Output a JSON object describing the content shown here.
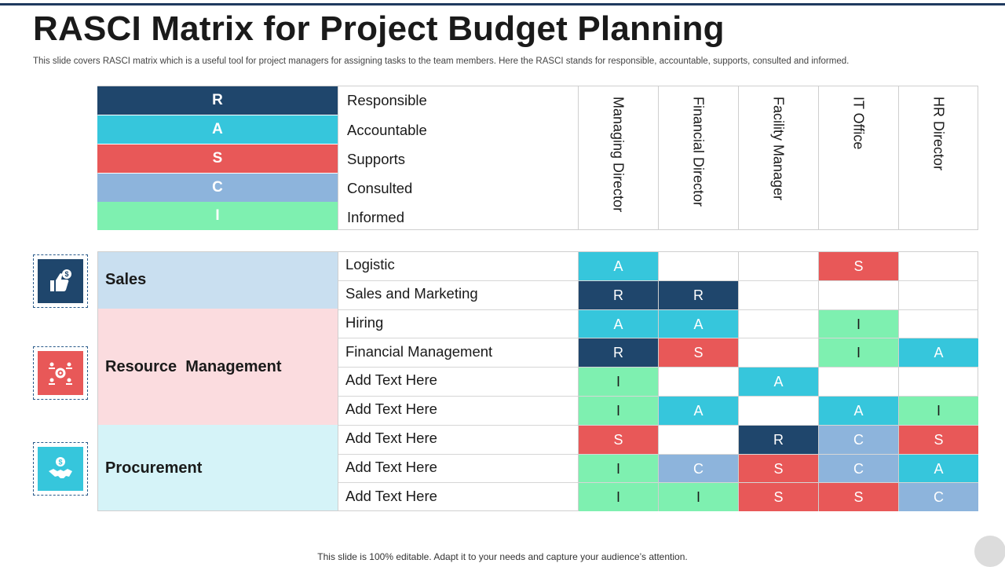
{
  "title": "RASCI Matrix for Project Budget Planning",
  "subtitle": "This slide covers RASCI matrix which is a useful tool for project managers for assigning tasks to the team members. Here the RASCI stands for responsible, accountable, supports, consulted and informed.",
  "footer": "This slide is 100% editable. Adapt it to your needs and capture your audience’s attention.",
  "colors": {
    "R": "#1f466c",
    "A": "#36c6dc",
    "S": "#e85858",
    "C": "#8db4dc",
    "I": "#7ef0b0"
  },
  "legend": [
    {
      "letter": "R",
      "label": "Responsible"
    },
    {
      "letter": "A",
      "label": "Accountable"
    },
    {
      "letter": "S",
      "label": "Supports"
    },
    {
      "letter": "C",
      "label": "Consulted"
    },
    {
      "letter": "I",
      "label": "Informed"
    }
  ],
  "roles": [
    "Managing Director",
    "Financial Director",
    "Facility Manager",
    "IT Office",
    "HR Director"
  ],
  "groups": [
    {
      "name": "Sales",
      "icon": "thumbs-up-dollar-icon",
      "color": "#c9dff0",
      "iconColor": "#1f466c"
    },
    {
      "name": "Resource  Management",
      "icon": "team-gear-icon",
      "color": "#fbdcdf",
      "iconColor": "#e85858"
    },
    {
      "name": "Procurement",
      "icon": "handshake-dollar-icon",
      "color": "#d5f3f8",
      "iconColor": "#36c6dc"
    }
  ],
  "tasks": [
    {
      "name": "Logistic",
      "cells": [
        "A",
        "",
        "",
        "S",
        ""
      ]
    },
    {
      "name": "Sales and Marketing",
      "cells": [
        "R",
        "R",
        "",
        "",
        ""
      ]
    },
    {
      "name": "Hiring",
      "cells": [
        "A",
        "A",
        "",
        "I",
        ""
      ]
    },
    {
      "name": "Financial Management",
      "cells": [
        "R",
        "S",
        "",
        "I",
        "A"
      ]
    },
    {
      "name": "Add Text Here",
      "cells": [
        "I",
        "",
        "A",
        "",
        ""
      ]
    },
    {
      "name": "Add Text Here",
      "cells": [
        "I",
        "A",
        "",
        "A",
        "I"
      ]
    },
    {
      "name": "Add Text Here",
      "cells": [
        "S",
        "",
        "R",
        "C",
        "S"
      ]
    },
    {
      "name": "Add Text Here",
      "cells": [
        "I",
        "C",
        "S",
        "C",
        "A"
      ]
    },
    {
      "name": "Add Text Here",
      "cells": [
        "I",
        "I",
        "S",
        "S",
        "C"
      ]
    }
  ]
}
